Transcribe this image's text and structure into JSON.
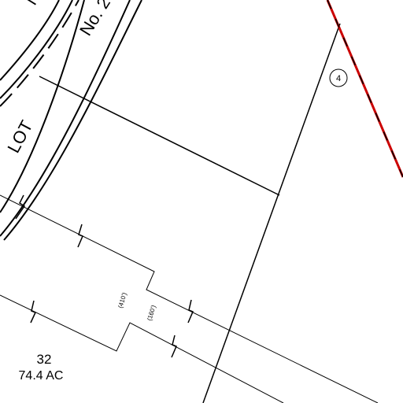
{
  "map": {
    "road_label_partial": "No. 2",
    "road_label_top": "N",
    "lot_label": "LOT",
    "parcel_circle_number": "4",
    "parcel_number": "32",
    "parcel_acreage": "74.4 AC",
    "dimension_a": "(410')",
    "dimension_b": "(160')",
    "boundary_color": "#cc0000"
  }
}
